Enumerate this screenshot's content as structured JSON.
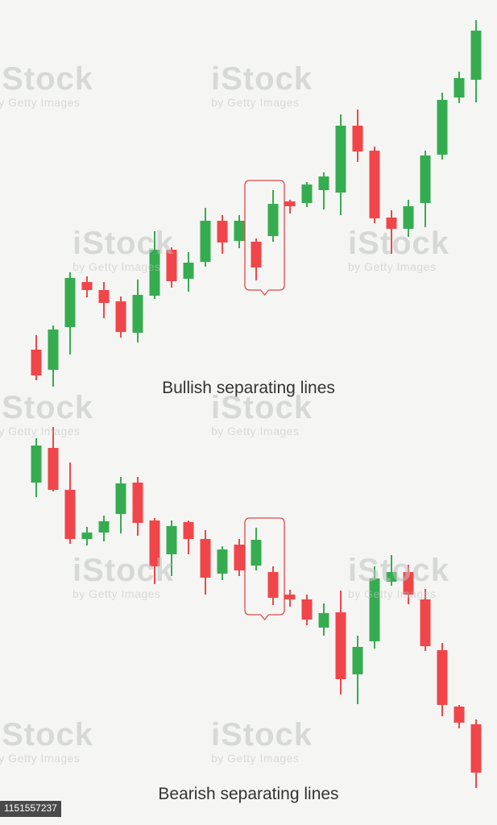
{
  "colors": {
    "bull": "#36ac50",
    "bear": "#f0464a",
    "wick": "#555555",
    "highlight": "#e04848"
  },
  "watermark": {
    "logo": "iStock",
    "credit": "by Getty Images"
  },
  "stock_id": "1151557237",
  "chart_data": [
    {
      "type": "candlestick",
      "caption": "Bullish separating lines",
      "x": [
        1,
        2,
        3,
        4,
        5,
        6,
        7,
        8,
        9,
        10,
        11,
        12,
        13,
        14,
        15,
        16,
        17,
        18,
        19,
        20,
        21,
        22,
        23,
        24,
        25,
        26,
        27
      ],
      "ylim": [
        0,
        470
      ],
      "grid": false,
      "highlight_x": [
        14,
        15
      ],
      "candles": [
        {
          "open": 46,
          "close": 14,
          "high": 64,
          "low": 8
        },
        {
          "open": 21,
          "close": 71,
          "high": 76,
          "low": 0
        },
        {
          "open": 74,
          "close": 135,
          "high": 142,
          "low": 40
        },
        {
          "open": 130,
          "close": 120,
          "high": 137,
          "low": 111
        },
        {
          "open": 120,
          "close": 104,
          "high": 130,
          "low": 85
        },
        {
          "open": 106,
          "close": 68,
          "high": 112,
          "low": 61
        },
        {
          "open": 67,
          "close": 114,
          "high": 133,
          "low": 55
        },
        {
          "open": 113,
          "close": 170,
          "high": 193,
          "low": 109
        },
        {
          "open": 170,
          "close": 131,
          "high": 173,
          "low": 123
        },
        {
          "open": 134,
          "close": 154,
          "high": 167,
          "low": 118
        },
        {
          "open": 155,
          "close": 206,
          "high": 222,
          "low": 149
        },
        {
          "open": 206,
          "close": 179,
          "high": 213,
          "low": 165
        },
        {
          "open": 181,
          "close": 206,
          "high": 213,
          "low": 172
        },
        {
          "open": 180,
          "close": 148,
          "high": 184,
          "low": 132
        },
        {
          "open": 187,
          "close": 227,
          "high": 244,
          "low": 180
        },
        {
          "open": 230,
          "close": 224,
          "high": 232,
          "low": 215
        },
        {
          "open": 228,
          "close": 251,
          "high": 254,
          "low": 223
        },
        {
          "open": 244,
          "close": 261,
          "high": 266,
          "low": 220
        },
        {
          "open": 241,
          "close": 324,
          "high": 338,
          "low": 213
        },
        {
          "open": 324,
          "close": 292,
          "high": 344,
          "low": 279
        },
        {
          "open": 293,
          "close": 209,
          "high": 298,
          "low": 203
        },
        {
          "open": 210,
          "close": 196,
          "high": 219,
          "low": 165
        },
        {
          "open": 196,
          "close": 224,
          "high": 232,
          "low": 186
        },
        {
          "open": 228,
          "close": 287,
          "high": 293,
          "low": 198
        },
        {
          "open": 288,
          "close": 356,
          "high": 365,
          "low": 282
        },
        {
          "open": 359,
          "close": 383,
          "high": 391,
          "low": 352
        },
        {
          "open": 381,
          "close": 442,
          "high": 455,
          "low": 353
        }
      ]
    },
    {
      "type": "candlestick",
      "caption": "Bearish separating lines",
      "x": [
        1,
        2,
        3,
        4,
        5,
        6,
        7,
        8,
        9,
        10,
        11,
        12,
        13,
        14,
        15,
        16,
        17,
        18,
        19,
        20,
        21,
        22,
        23,
        24,
        25,
        26,
        27
      ],
      "ylim": [
        0,
        470
      ],
      "grid": false,
      "highlight_x": [
        14,
        15
      ],
      "candles": [
        {
          "open": 401,
          "close": 447,
          "high": 456,
          "low": 383
        },
        {
          "open": 444,
          "close": 392,
          "high": 470,
          "low": 390
        },
        {
          "open": 392,
          "close": 331,
          "high": 426,
          "low": 325
        },
        {
          "open": 331,
          "close": 339,
          "high": 346,
          "low": 323
        },
        {
          "open": 339,
          "close": 353,
          "high": 360,
          "low": 328
        },
        {
          "open": 362,
          "close": 400,
          "high": 408,
          "low": 338
        },
        {
          "open": 401,
          "close": 351,
          "high": 408,
          "low": 335
        },
        {
          "open": 354,
          "close": 297,
          "high": 357,
          "low": 275
        },
        {
          "open": 312,
          "close": 347,
          "high": 354,
          "low": 285
        },
        {
          "open": 352,
          "close": 331,
          "high": 354,
          "low": 312
        },
        {
          "open": 331,
          "close": 283,
          "high": 342,
          "low": 262
        },
        {
          "open": 288,
          "close": 318,
          "high": 322,
          "low": 280
        },
        {
          "open": 324,
          "close": 292,
          "high": 331,
          "low": 285
        },
        {
          "open": 298,
          "close": 330,
          "high": 345,
          "low": 292
        },
        {
          "open": 290,
          "close": 258,
          "high": 297,
          "low": 249
        },
        {
          "open": 262,
          "close": 256,
          "high": 268,
          "low": 247
        },
        {
          "open": 256,
          "close": 231,
          "high": 262,
          "low": 224
        },
        {
          "open": 221,
          "close": 239,
          "high": 251,
          "low": 211
        },
        {
          "open": 240,
          "close": 157,
          "high": 267,
          "low": 138
        },
        {
          "open": 163,
          "close": 197,
          "high": 211,
          "low": 126
        },
        {
          "open": 204,
          "close": 282,
          "high": 297,
          "low": 195
        },
        {
          "open": 278,
          "close": 290,
          "high": 311,
          "low": 273
        },
        {
          "open": 290,
          "close": 262,
          "high": 299,
          "low": 250
        },
        {
          "open": 256,
          "close": 198,
          "high": 269,
          "low": 192
        },
        {
          "open": 193,
          "close": 125,
          "high": 202,
          "low": 111
        },
        {
          "open": 123,
          "close": 103,
          "high": 125,
          "low": 96
        },
        {
          "open": 101,
          "close": 41,
          "high": 107,
          "low": 22
        }
      ]
    }
  ]
}
